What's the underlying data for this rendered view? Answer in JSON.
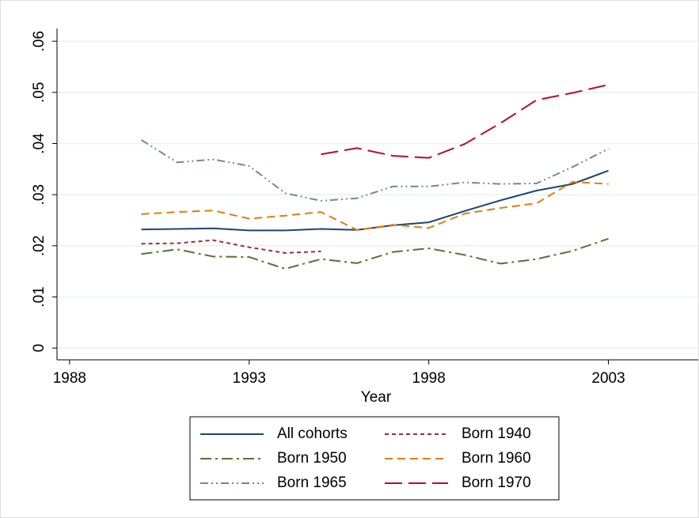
{
  "chart_data": {
    "type": "line",
    "x_label": "Year",
    "x": [
      1990,
      1991,
      1992,
      1993,
      1994,
      1995,
      1996,
      1997,
      1998,
      1999,
      2000,
      2001,
      2002,
      2003
    ],
    "series": [
      {
        "name": "All cohorts",
        "color": "#1a476f",
        "style": "solid",
        "values": [
          0.0232,
          0.0233,
          0.0234,
          0.023,
          0.023,
          0.0233,
          0.0231,
          0.024,
          0.0246,
          0.0268,
          0.0289,
          0.0308,
          0.0321,
          0.0347
        ]
      },
      {
        "name": "Born 1940",
        "color": "#90353b",
        "style": "short-dash",
        "values": [
          0.0204,
          0.0205,
          0.0211,
          0.0197,
          0.0186,
          0.0189,
          null,
          null,
          null,
          null,
          null,
          null,
          null,
          null
        ]
      },
      {
        "name": "Born 1950",
        "color": "#55752f",
        "style": "dash-dot",
        "values": [
          0.0184,
          0.0193,
          0.0179,
          0.0178,
          0.0155,
          0.0174,
          0.0166,
          0.0188,
          0.0195,
          0.0182,
          0.0165,
          0.0174,
          0.019,
          0.0214
        ]
      },
      {
        "name": "Born 1960",
        "color": "#e37e00",
        "style": "dash",
        "values": [
          0.0262,
          0.0266,
          0.0269,
          0.0253,
          0.0259,
          0.0266,
          0.0231,
          0.0241,
          0.0235,
          0.0263,
          0.0274,
          0.0283,
          0.0325,
          0.0321
        ]
      },
      {
        "name": "Born 1965",
        "color": "#6e8e84",
        "style": "dash-dot-dot",
        "values": [
          0.0407,
          0.0363,
          0.0369,
          0.0356,
          0.0303,
          0.0288,
          0.0293,
          0.0316,
          0.0316,
          0.0324,
          0.0321,
          0.0322,
          0.0354,
          0.039
        ]
      },
      {
        "name": "Born 1970",
        "color": "#c10534",
        "style": "long-dash",
        "values": [
          null,
          null,
          null,
          null,
          null,
          0.0379,
          0.0391,
          0.0376,
          0.0372,
          0.0399,
          0.044,
          0.0485,
          0.0499,
          0.0515
        ]
      }
    ],
    "xlim": [
      1987.65,
      2005.5
    ],
    "xticks": [
      1988,
      1993,
      1998,
      2003
    ],
    "ylim": [
      -0.0023,
      0.0625
    ],
    "yticks": [
      0,
      {
        "value": 0.01,
        "label": ".01"
      },
      {
        "value": 0.02,
        "label": ".02"
      },
      {
        "value": 0.03,
        "label": ".03"
      },
      {
        "value": 0.04,
        "label": ".04"
      },
      {
        "value": 0.05,
        "label": ".05"
      },
      {
        "value": 0.06,
        "label": ".06"
      }
    ],
    "grid": true,
    "legend": "bottom"
  }
}
